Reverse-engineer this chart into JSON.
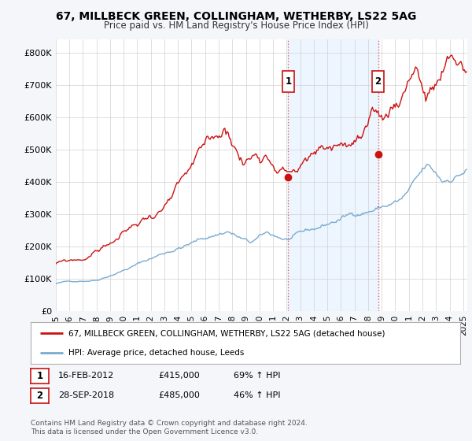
{
  "title_line1": "67, MILLBECK GREEN, COLLINGHAM, WETHERBY, LS22 5AG",
  "title_line2": "Price paid vs. HM Land Registry's House Price Index (HPI)",
  "xlim_start": 1995.0,
  "xlim_end": 2025.3,
  "ylim_bottom": 0,
  "ylim_top": 840000,
  "yticks": [
    0,
    100000,
    200000,
    300000,
    400000,
    500000,
    600000,
    700000,
    800000
  ],
  "ytick_labels": [
    "£0",
    "£100K",
    "£200K",
    "£300K",
    "£400K",
    "£500K",
    "£600K",
    "£700K",
    "£800K"
  ],
  "sale1_x": 2012.12,
  "sale1_y": 415000,
  "sale2_x": 2018.73,
  "sale2_y": 485000,
  "hpi_color": "#7aaad0",
  "price_color": "#cc1111",
  "vline_color": "#e06060",
  "marker_edge_color": "#cc1111",
  "shade_color": "#ddeeff",
  "shade_alpha": 0.5,
  "legend_price_label": "67, MILLBECK GREEN, COLLINGHAM, WETHERBY, LS22 5AG (detached house)",
  "legend_hpi_label": "HPI: Average price, detached house, Leeds",
  "note1_date": "16-FEB-2012",
  "note1_price": "£415,000",
  "note1_hpi": "69% ↑ HPI",
  "note2_date": "28-SEP-2018",
  "note2_price": "£485,000",
  "note2_hpi": "46% ↑ HPI",
  "footer": "Contains HM Land Registry data © Crown copyright and database right 2024.\nThis data is licensed under the Open Government Licence v3.0.",
  "bg_color": "#f4f6fa",
  "plot_bg": "#ffffff",
  "grid_color": "#d0d0d0"
}
